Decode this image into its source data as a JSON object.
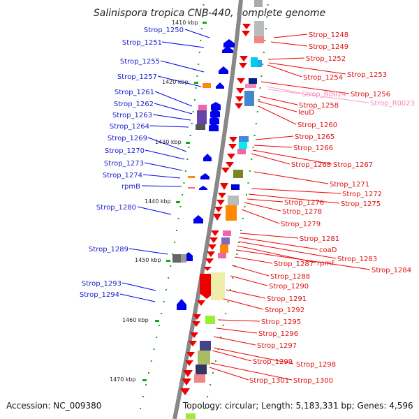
{
  "title": "Salinispora tropica CNB-440, complete genome",
  "accession": "Accession: NC_009380",
  "topology": "Topology: circular; Length: 5,183,331 bp; Genes: 4,596",
  "kbp_ticks": [
    "1410 kbp",
    "1420 kbp",
    "1430 kbp",
    "1440 kbp",
    "1450 kbp",
    "1460 kbp",
    "1470 kbp"
  ],
  "left_labels": [
    "Strop_1250",
    "Strop_1251",
    "Strop_1255",
    "Strop_1257",
    "Strop_1261",
    "Strop_1262",
    "Strop_1263",
    "Strop_1264",
    "Strop_1269",
    "Strop_1270",
    "Strop_1273",
    "Strop_1274",
    "rpmB",
    "Strop_1280",
    "Strop_1289",
    "Strop_1293",
    "Strop_1294"
  ],
  "right_labels": [
    "Strop_1248",
    "Strop_1249",
    "Strop_1252",
    "Strop_1254",
    "Strop_1253",
    "Strop_1256",
    "Strop_1258",
    "leuD",
    "Strop_1260",
    "Strop_1265",
    "Strop_1266",
    "Strop_1268",
    "Strop_1267",
    "Strop_1271",
    "Strop_1272",
    "Strop_1276",
    "Strop_1275",
    "Strop_1278",
    "Strop_1279",
    "Strop_1281",
    "coaD",
    "Strop_1283",
    "Strop_1287",
    "rpmF",
    "Strop_1284",
    "Strop_1288",
    "Strop_1290",
    "Strop_1291",
    "Strop_1292",
    "Strop_1295",
    "Strop_1296",
    "Strop_1297",
    "Strop_1299",
    "Strop_1298",
    "Strop_1301",
    "Strop_1300"
  ],
  "rna_labels": [
    "Strop_R0024",
    "Strop_R0023"
  ],
  "colors": {
    "backbone": "#888888",
    "forward_gene": "#0000ee",
    "reverse_gene": "#ee0000",
    "rna_gene": "#ff99cc",
    "tick": "#11aa11",
    "left_label": "#1a1acc",
    "right_label": "#dd1111"
  }
}
